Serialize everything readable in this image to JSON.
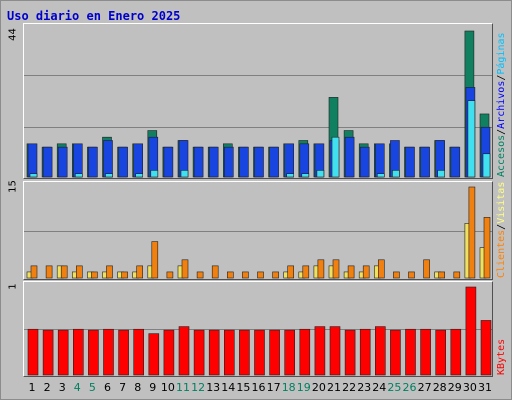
{
  "chart_data": {
    "type": "bar",
    "title": "Uso diario en Enero 2025",
    "categories": [
      "1",
      "2",
      "3",
      "4",
      "5",
      "6",
      "7",
      "8",
      "9",
      "10",
      "11",
      "12",
      "13",
      "14",
      "15",
      "16",
      "17",
      "18",
      "19",
      "20",
      "21",
      "22",
      "23",
      "24",
      "25",
      "26",
      "27",
      "28",
      "29",
      "30",
      "31"
    ],
    "weekend_days": [
      "4",
      "5",
      "11",
      "12",
      "18",
      "19",
      "25",
      "26"
    ],
    "panels": [
      {
        "ymax_label": "44",
        "ylim": [
          0,
          44
        ],
        "legend": [
          "Accesos",
          "/",
          "Archivos",
          "/",
          "Páginas"
        ],
        "legend_colors": [
          "#008060",
          "#000000",
          "#0000ff",
          "#000000",
          "#00c0ff"
        ],
        "series": [
          {
            "name": "Accesos",
            "color": "#108060",
            "values": [
              10,
              9,
              10,
              10,
              9,
              12,
              9,
              10,
              14,
              9,
              11,
              9,
              9,
              10,
              9,
              9,
              9,
              10,
              11,
              10,
              24,
              14,
              10,
              10,
              10,
              9,
              9,
              11,
              9,
              9,
              9
            ]
          },
          {
            "name": "Archivos",
            "color": "#1844e0",
            "values": [
              10,
              9,
              9,
              10,
              9,
              11,
              9,
              10,
              12,
              9,
              11,
              9,
              9,
              9,
              9,
              9,
              9,
              10,
              10,
              10,
              11,
              12,
              9,
              10,
              11,
              9,
              9,
              11,
              9,
              9,
              9
            ]
          },
          {
            "name": "Páginas",
            "color": "#40e0f0",
            "values": [
              1,
              0,
              0,
              1,
              0,
              1,
              0,
              1,
              2,
              0,
              2,
              0,
              0,
              0,
              0,
              0,
              0,
              1,
              1,
              2,
              12,
              0,
              0,
              1,
              2,
              0,
              0,
              2,
              0,
              0,
              0
            ]
          }
        ],
        "late_values": {
          "Accesos": [
            44,
            19
          ],
          "Archivos": [
            27,
            15
          ],
          "Páginas": [
            23,
            7
          ]
        }
      },
      {
        "ymax_label": "15",
        "ylim": [
          0,
          15
        ],
        "legend": [
          "Clientes",
          "/",
          "Visitas"
        ],
        "legend_colors": [
          "#ff8000",
          "#000000",
          "#ffff80"
        ],
        "series": [
          {
            "name": "Visitas",
            "color": "#f0e060",
            "values": [
              1,
              0,
              2,
              1,
              1,
              1,
              1,
              1,
              2,
              0,
              2,
              0,
              0,
              0,
              0,
              0,
              0,
              1,
              1,
              2,
              2,
              1,
              1,
              2,
              0,
              0,
              0,
              1,
              0,
              0,
              0
            ]
          },
          {
            "name": "Clientes",
            "color": "#f08010",
            "values": [
              2,
              2,
              2,
              2,
              1,
              2,
              1,
              2,
              6,
              1,
              3,
              1,
              2,
              1,
              1,
              1,
              1,
              2,
              2,
              3,
              3,
              2,
              2,
              3,
              1,
              1,
              3,
              1,
              1,
              15,
              10
            ]
          }
        ],
        "late_visitas": [
          9,
          5
        ]
      },
      {
        "ymax_label": "1",
        "ylim": [
          0,
          1
        ],
        "legend": [
          "KBytes"
        ],
        "legend_colors": [
          "#ff0000"
        ],
        "series": [
          {
            "name": "KBytes",
            "color": "#ff0000",
            "values": [
              0.52,
              0.51,
              0.51,
              0.52,
              0.51,
              0.52,
              0.51,
              0.52,
              0.47,
              0.51,
              0.55,
              0.51,
              0.51,
              0.51,
              0.51,
              0.51,
              0.51,
              0.51,
              0.52,
              0.55,
              0.55,
              0.51,
              0.52,
              0.55,
              0.51,
              0.52,
              0.52,
              0.51,
              0.52,
              1.0,
              0.62
            ]
          }
        ]
      }
    ]
  }
}
